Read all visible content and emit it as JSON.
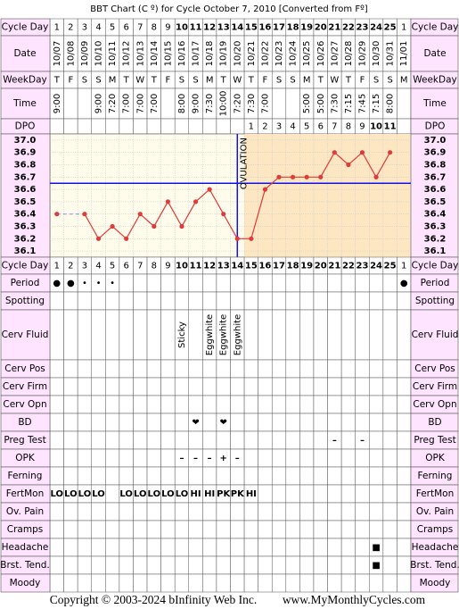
{
  "title": "BBT Chart (C º) for Cycle October 7, 2010  [Converted from Fº]",
  "chart_data": {
    "type": "line",
    "header_rows": [
      {
        "label": "Cycle Day",
        "cells": [
          1,
          2,
          3,
          4,
          5,
          6,
          7,
          8,
          9,
          10,
          11,
          12,
          13,
          14,
          15,
          16,
          17,
          18,
          19,
          20,
          21,
          22,
          23,
          24,
          25,
          1
        ]
      },
      {
        "label": "Date",
        "cells": [
          "10/07",
          "10/08",
          "10/09",
          "10/10",
          "10/11",
          "10/12",
          "10/13",
          "10/14",
          "10/15",
          "10/16",
          "10/17",
          "10/18",
          "10/19",
          "10/20",
          "10/21",
          "10/22",
          "10/23",
          "10/24",
          "10/25",
          "10/26",
          "10/27",
          "10/28",
          "10/29",
          "10/30",
          "10/31",
          "11/01"
        ]
      },
      {
        "label": "WeekDay",
        "cells": [
          "T",
          "F",
          "S",
          "S",
          "M",
          "T",
          "W",
          "T",
          "F",
          "S",
          "S",
          "M",
          "T",
          "W",
          "T",
          "F",
          "S",
          "S",
          "M",
          "T",
          "W",
          "T",
          "F",
          "S",
          "S",
          "M"
        ]
      },
      {
        "label": "Time",
        "cells": [
          "9:00",
          null,
          null,
          "9:00",
          "7:20",
          "7:00",
          "7:00",
          "7:00",
          null,
          "8:00",
          "9:00",
          "7:30",
          "10:00",
          "7:20",
          "7:30",
          "7:00",
          null,
          null,
          "5:00",
          "5:00",
          "7:30",
          "7:15",
          "7:45",
          "7:15",
          "8:00",
          null
        ]
      },
      {
        "label": "DPO",
        "cells": [
          null,
          null,
          null,
          null,
          null,
          null,
          null,
          null,
          null,
          null,
          null,
          null,
          null,
          null,
          1,
          2,
          3,
          4,
          5,
          6,
          7,
          8,
          9,
          10,
          11,
          null
        ]
      }
    ],
    "ylim": [
      36.05,
      37.05
    ],
    "yticks": [
      {
        "value": 37,
        "label": "37.0"
      },
      36.9,
      36.8,
      36.7,
      36.6,
      36.5,
      36.4,
      36.3,
      36.2,
      36.1
    ],
    "values": [
      36.4,
      null,
      36.4,
      36.2,
      36.3,
      36.2,
      36.4,
      36.3,
      36.5,
      36.3,
      36.5,
      36.6,
      36.4,
      36.2,
      36.2,
      36.6,
      36.7,
      36.7,
      36.7,
      36.7,
      36.9,
      36.8,
      36.9,
      36.7,
      36.9,
      null
    ],
    "color": "#e03a3a",
    "coverline": 36.65,
    "coverline_color": "#1010ee",
    "ovulation_label": "OVULATION",
    "grid": true
  },
  "rows": [
    {
      "label": "Period",
      "color": "#ee00ee",
      "cells": [
        "●",
        "●",
        "•",
        "•",
        "•",
        null,
        null,
        null,
        null,
        null,
        null,
        null,
        null,
        null,
        null,
        null,
        null,
        null,
        null,
        null,
        null,
        null,
        null,
        null,
        null,
        "●"
      ]
    },
    {
      "label": "Spotting"
    },
    {
      "label": "Cerv Fluid",
      "color": "#000000",
      "cells": [
        null,
        null,
        null,
        null,
        null,
        null,
        null,
        null,
        null,
        "Sticky",
        null,
        "Eggwhite",
        "Eggwhite",
        "Eggwhite",
        null,
        null,
        null,
        null,
        null,
        null,
        null,
        null,
        null,
        null,
        null,
        null
      ]
    },
    {
      "label": "Cerv Pos"
    },
    {
      "label": "Cerv Firm"
    },
    {
      "label": "Cerv Opn"
    },
    {
      "label": "BD",
      "color": "#f0609a",
      "cells": [
        null,
        null,
        null,
        null,
        null,
        null,
        null,
        null,
        null,
        null,
        "❤",
        null,
        "❤",
        null,
        null,
        null,
        null,
        null,
        null,
        null,
        null,
        null,
        null,
        null,
        null,
        null
      ]
    },
    {
      "label": "Preg Test",
      "color": "#8a3cc8",
      "cells": [
        null,
        null,
        null,
        null,
        null,
        null,
        null,
        null,
        null,
        null,
        null,
        null,
        null,
        null,
        null,
        null,
        null,
        null,
        null,
        null,
        "–",
        null,
        "–",
        null,
        null,
        null
      ]
    },
    {
      "label": "OPK",
      "color": "#8a3cc8",
      "cells": [
        null,
        null,
        null,
        null,
        null,
        null,
        null,
        null,
        null,
        "–",
        "–",
        "–",
        "+",
        "–",
        null,
        null,
        null,
        null,
        null,
        null,
        null,
        null,
        null,
        null,
        null,
        null
      ]
    },
    {
      "label": "Ferning"
    },
    {
      "label": "FertMon",
      "color": "#138a13",
      "cells": [
        "LO",
        "LO",
        "LO",
        "LO",
        null,
        "LO",
        "LO",
        "LO",
        "LO",
        "LO",
        "HI",
        "HI",
        "PK",
        "PK",
        "HI",
        null,
        null,
        null,
        null,
        null,
        null,
        null,
        null,
        null,
        null,
        null
      ]
    },
    {
      "label": "Ov. Pain"
    },
    {
      "label": "Cramps"
    },
    {
      "label": "Headache",
      "color": "#44c444",
      "cells": [
        null,
        null,
        null,
        null,
        null,
        null,
        null,
        null,
        null,
        null,
        null,
        null,
        null,
        null,
        null,
        null,
        null,
        null,
        null,
        null,
        null,
        null,
        null,
        "■",
        null,
        null
      ]
    },
    {
      "label": "Brst. Tend.",
      "color": "#44c444",
      "cells": [
        null,
        null,
        null,
        null,
        null,
        null,
        null,
        null,
        null,
        null,
        null,
        null,
        null,
        null,
        null,
        null,
        null,
        null,
        null,
        null,
        null,
        null,
        null,
        "■",
        null,
        null
      ]
    },
    {
      "label": "Moody"
    }
  ],
  "footer": {
    "copyright": "Copyright © 2003-2024 bInfinity Web Inc.",
    "site": "www.MyMonthlyCycles.com"
  }
}
